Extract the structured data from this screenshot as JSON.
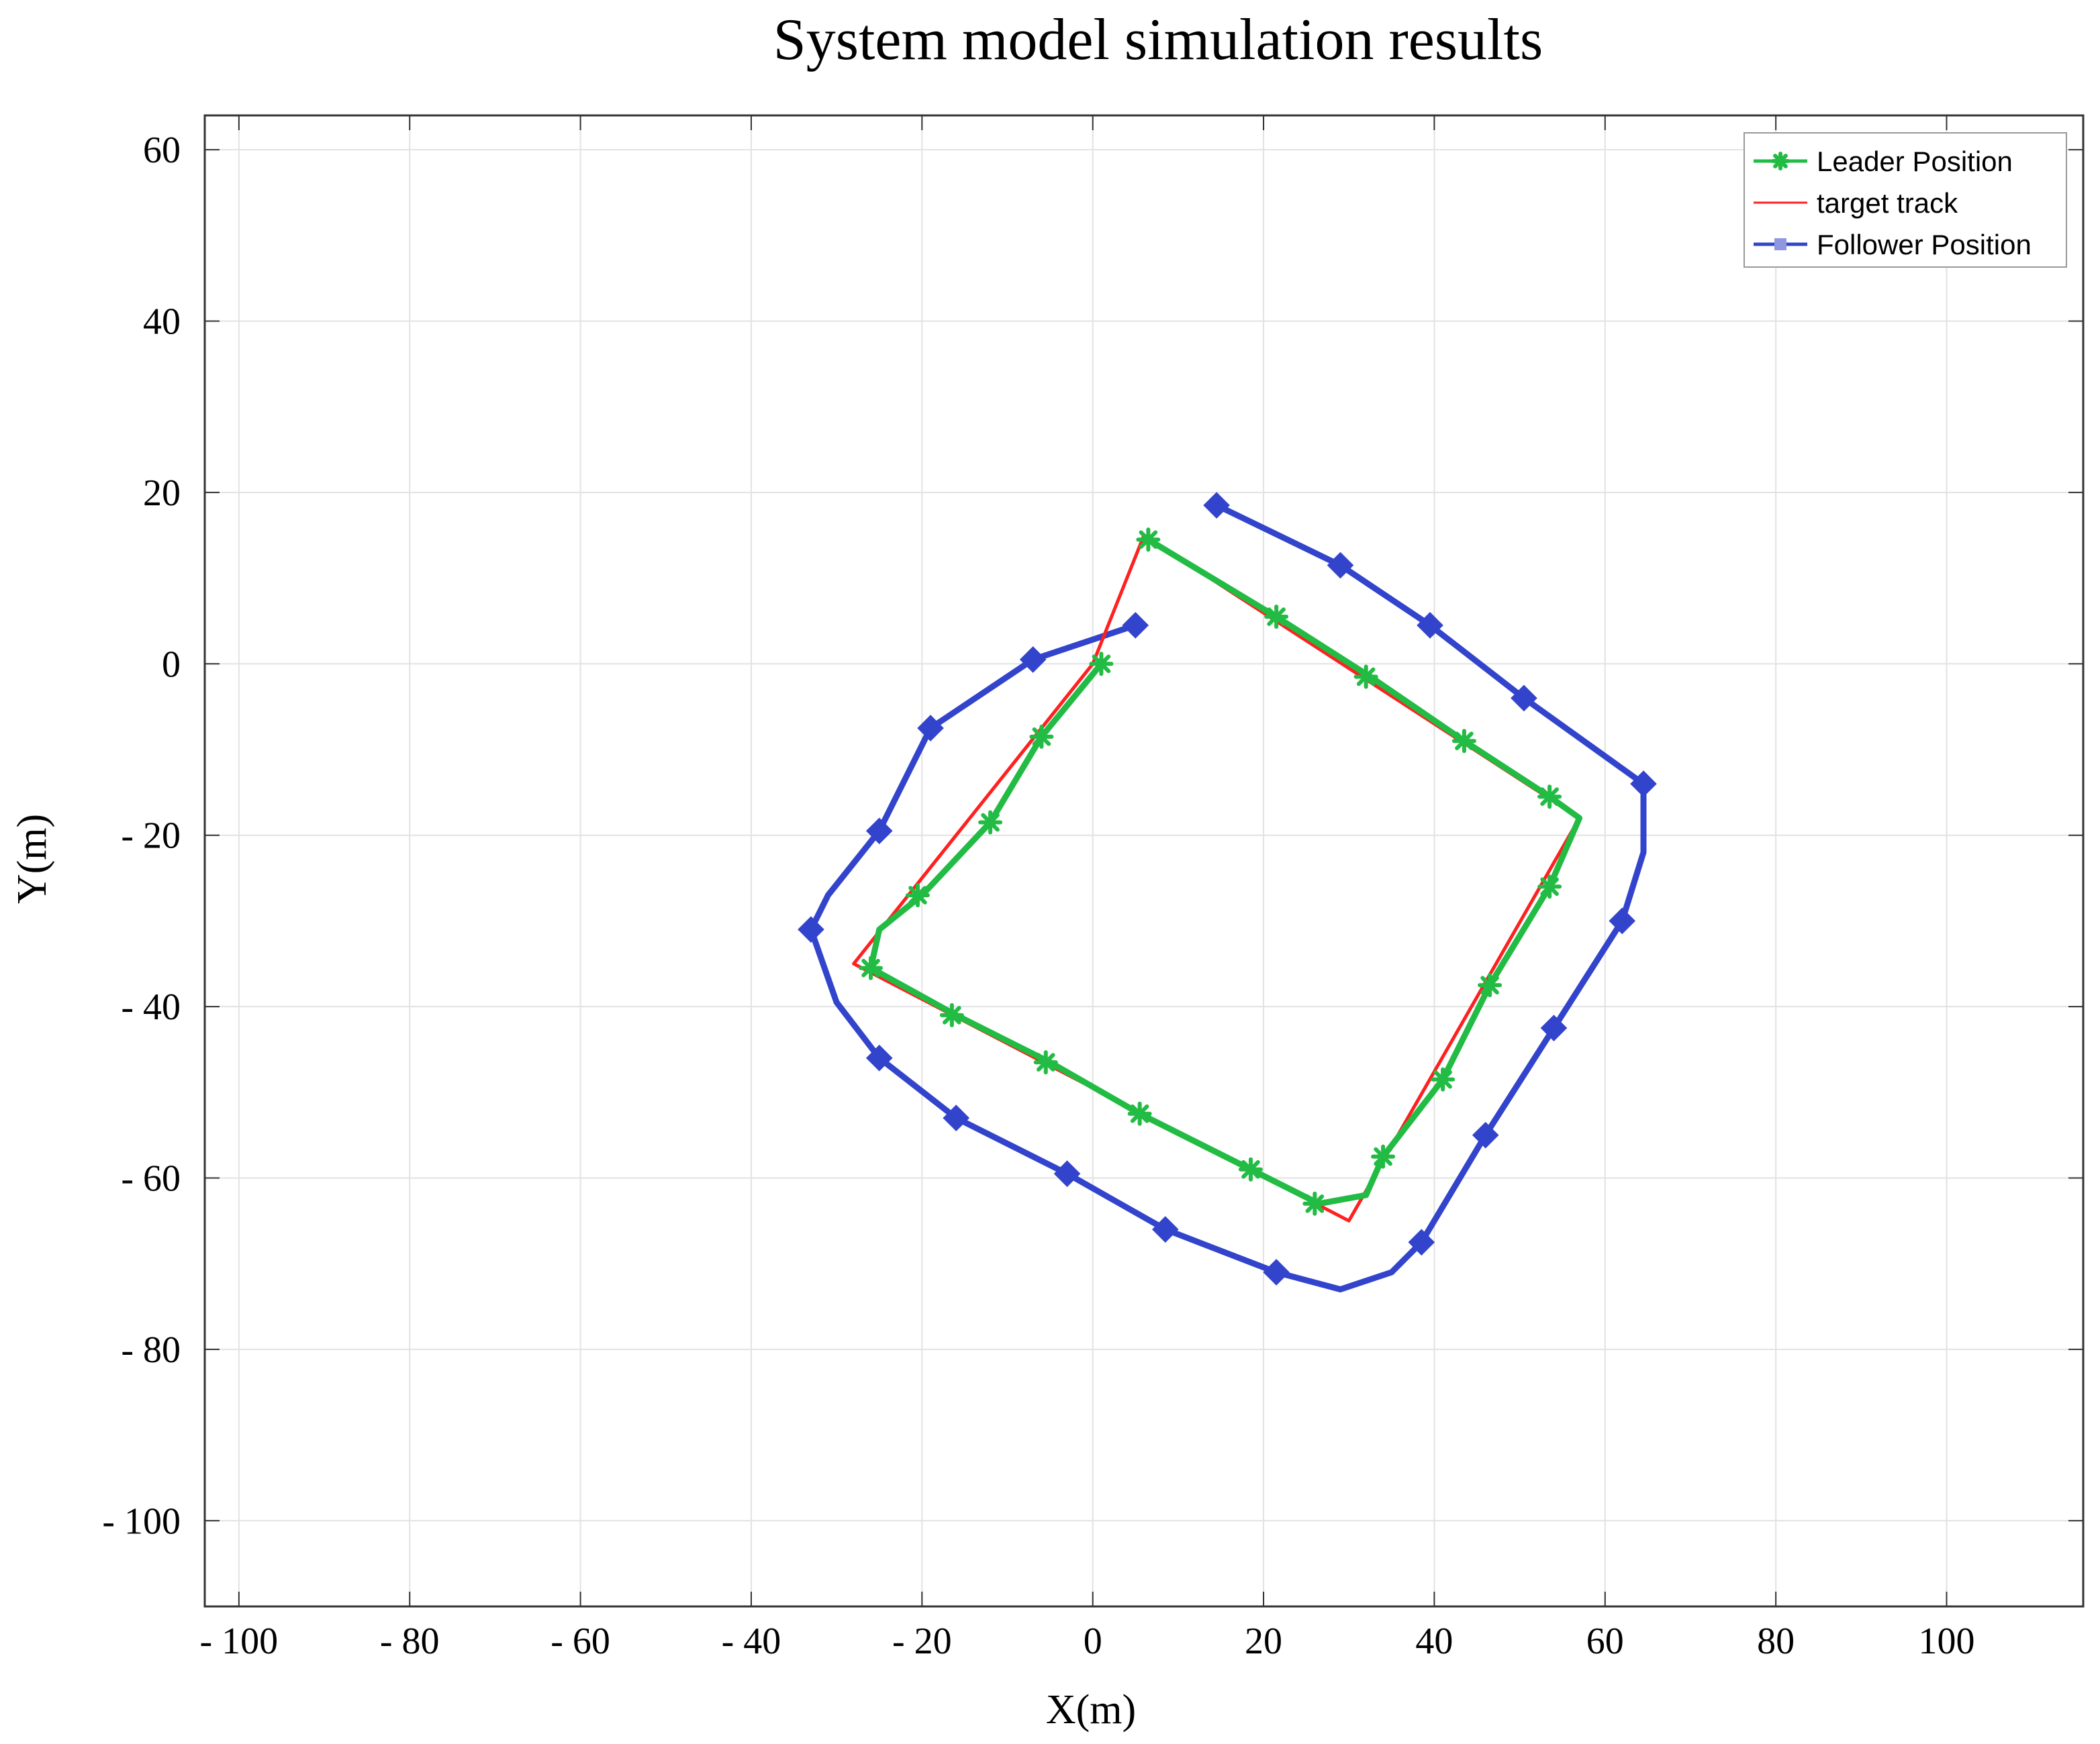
{
  "chart_data": {
    "type": "line",
    "title": "System model simulation results",
    "xlabel": "X(m)",
    "ylabel": "Y(m)",
    "xlim": [
      -104,
      116
    ],
    "ylim": [
      -110,
      64
    ],
    "grid": true,
    "legend_position": "top-right",
    "x_ticks": [
      -100,
      -80,
      -60,
      -40,
      -20,
      0,
      20,
      40,
      60,
      80,
      100
    ],
    "y_ticks": [
      60,
      40,
      20,
      0,
      -20,
      -40,
      -60,
      -80,
      -100
    ],
    "x_tick_labels": [
      "- 100",
      "- 80",
      "- 60",
      "- 40",
      "- 20",
      "0",
      "20",
      "40",
      "60",
      "80",
      "100"
    ],
    "y_tick_labels": [
      "60",
      "40",
      "20",
      "0",
      "- 20",
      "- 40",
      "- 60",
      "- 80",
      "- 100"
    ],
    "series": [
      {
        "name": "target track",
        "color": "#ff2020",
        "marker": "none",
        "x": [
          0,
          -28,
          30,
          57,
          6,
          0
        ],
        "y": [
          0,
          -35,
          -65,
          -18,
          15,
          0
        ]
      },
      {
        "name": "Leader Position",
        "color": "#22bb44",
        "marker": "star",
        "x": [
          1,
          -6,
          -12,
          -20,
          -25,
          -26,
          -16,
          -5,
          5.5,
          18.5,
          26.5,
          32,
          34,
          41,
          46.5,
          53.5,
          57,
          53.5,
          43.5,
          32.5,
          21.5,
          6.5
        ],
        "y": [
          0,
          -8.5,
          -18.5,
          -27,
          -31,
          -35.5,
          -41,
          -46.5,
          -52.5,
          -59,
          -63,
          -62,
          -57.5,
          -48.5,
          -37.5,
          -26,
          -18,
          -15.5,
          -9,
          -1.5,
          5.5,
          14.5
        ],
        "marker_x": [
          1,
          -6,
          -12,
          -20.5,
          -26,
          -16.5,
          -5.5,
          5.5,
          18.5,
          26,
          34,
          41,
          46.5,
          53.5,
          53.5,
          43.5,
          32,
          21.5,
          6.5
        ],
        "marker_y": [
          0,
          -8.5,
          -18.5,
          -27,
          -35.5,
          -41,
          -46.5,
          -52.5,
          -59,
          -63,
          -57.5,
          -48.5,
          -37.5,
          -26,
          -15.5,
          -9,
          -1.5,
          5.5,
          14.5
        ]
      },
      {
        "name": "Follower Position",
        "color": "#3344cc",
        "marker": "diamond",
        "x": [
          5,
          -7,
          -19,
          -25,
          -31,
          -33,
          -30,
          -25,
          -16,
          -3,
          8.5,
          21.5,
          29,
          35,
          38.5,
          46,
          54,
          62,
          64.5,
          64.5,
          50.5,
          39.5,
          29,
          14.5
        ],
        "y": [
          4.5,
          0.5,
          -7.5,
          -19.5,
          -27,
          -31,
          -39.5,
          -46,
          -53,
          -59.5,
          -66,
          -71,
          -73,
          -71,
          -67.5,
          -55,
          -42.5,
          -30,
          -22,
          -14,
          -4,
          4.5,
          11.5,
          18.5
        ],
        "marker_x": [
          5,
          -7,
          -19,
          -25,
          -33,
          -25,
          -16,
          -3,
          8.5,
          21.5,
          38.5,
          46,
          54,
          62,
          64.5,
          50.5,
          39.5,
          29,
          14.5
        ],
        "marker_y": [
          4.5,
          0.5,
          -7.5,
          -19.5,
          -31,
          -46,
          -53,
          -59.5,
          -66,
          -71,
          -67.5,
          -55,
          -42.5,
          -30,
          -14,
          -4,
          4.5,
          11.5,
          18.5
        ]
      }
    ],
    "legend_entries": [
      "Leader Position",
      "target track",
      "Follower Position"
    ]
  }
}
